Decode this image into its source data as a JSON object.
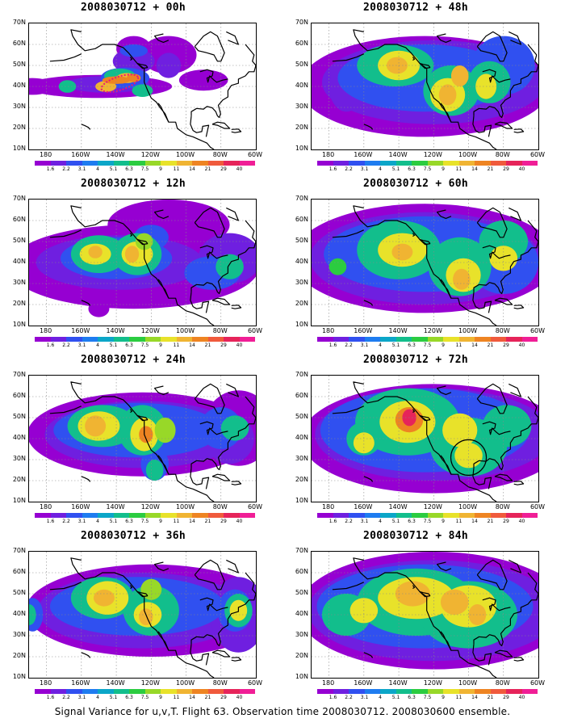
{
  "panels": [
    {
      "title": "2008030712 + 00h",
      "stage": 0
    },
    {
      "title": "2008030712 + 48h",
      "stage": 4
    },
    {
      "title": "2008030712 + 12h",
      "stage": 1
    },
    {
      "title": "2008030712 + 60h",
      "stage": 5
    },
    {
      "title": "2008030712 + 24h",
      "stage": 2
    },
    {
      "title": "2008030712 + 72h",
      "stage": 6
    },
    {
      "title": "2008030712 + 36h",
      "stage": 3
    },
    {
      "title": "2008030712 + 84h",
      "stage": 7
    }
  ],
  "y_ticks": [
    "70N",
    "60N",
    "50N",
    "40N",
    "30N",
    "20N",
    "10N"
  ],
  "x_ticks": [
    "180",
    "160W",
    "140W",
    "120W",
    "100W",
    "80W",
    "60W"
  ],
  "colorbar": {
    "labels": [
      "1.6",
      "2.2",
      "3.1",
      "4",
      "5.1",
      "6.3",
      "7.5",
      "9",
      "11",
      "14",
      "21",
      "29",
      "40"
    ],
    "colors": [
      "#9600d2",
      "#6f1fe0",
      "#3050f0",
      "#1e7cf0",
      "#0ba6c8",
      "#12be8c",
      "#2bcc40",
      "#98d828",
      "#e8e22a",
      "#f0b432",
      "#ee8422",
      "#f05a3c",
      "#e6245a",
      "#f01e96"
    ]
  },
  "caption": "Signal Variance for u,v,T. Flight 63. Observation time 2008030712. 2008030600 ensemble."
}
